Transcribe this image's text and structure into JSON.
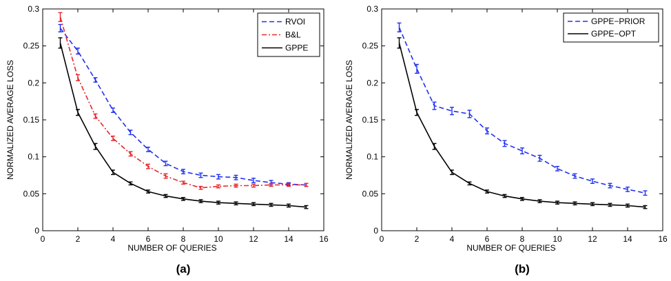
{
  "chart_data": [
    {
      "type": "line",
      "caption": "(a)",
      "xlabel": "NUMBER OF QUERIES",
      "ylabel": "NORMALIZED AVERAGE LOSS",
      "xlim": [
        0,
        16
      ],
      "ylim": [
        0,
        0.3
      ],
      "xticks": [
        0,
        2,
        4,
        6,
        8,
        10,
        12,
        14,
        16
      ],
      "yticks": [
        0,
        0.05,
        0.1,
        0.15,
        0.2,
        0.25,
        0.3
      ],
      "xtick_labels": [
        "0",
        "2",
        "4",
        "6",
        "8",
        "10",
        "12",
        "14",
        "16"
      ],
      "ytick_labels": [
        "0",
        "0.05",
        "0.1",
        "0.15",
        "0.2",
        "0.25",
        "0.3"
      ],
      "grid": false,
      "legend_position": "top-right",
      "x": [
        1,
        2,
        3,
        4,
        5,
        6,
        7,
        8,
        9,
        10,
        11,
        12,
        13,
        14,
        15
      ],
      "series": [
        {
          "name": "RVOI",
          "color": "#1f2ff0",
          "style": "dashed",
          "values": [
            0.274,
            0.243,
            0.204,
            0.163,
            0.133,
            0.11,
            0.091,
            0.08,
            0.075,
            0.073,
            0.072,
            0.068,
            0.065,
            0.063,
            0.062
          ],
          "errors": [
            0.005,
            0.004,
            0.003,
            0.003,
            0.003,
            0.003,
            0.003,
            0.003,
            0.003,
            0.003,
            0.003,
            0.003,
            0.003,
            0.002,
            0.002
          ]
        },
        {
          "name": "B&L",
          "color": "#e8252a",
          "style": "dashdot",
          "values": [
            0.289,
            0.207,
            0.155,
            0.125,
            0.104,
            0.087,
            0.074,
            0.065,
            0.058,
            0.06,
            0.061,
            0.061,
            0.062,
            0.062,
            0.062
          ],
          "errors": [
            0.006,
            0.004,
            0.003,
            0.003,
            0.003,
            0.003,
            0.003,
            0.002,
            0.002,
            0.002,
            0.002,
            0.002,
            0.002,
            0.002,
            0.002
          ]
        },
        {
          "name": "GPPE",
          "color": "#000000",
          "style": "solid",
          "values": [
            0.254,
            0.16,
            0.114,
            0.079,
            0.064,
            0.053,
            0.047,
            0.043,
            0.04,
            0.038,
            0.037,
            0.036,
            0.035,
            0.034,
            0.032
          ],
          "errors": [
            0.007,
            0.004,
            0.004,
            0.003,
            0.002,
            0.002,
            0.002,
            0.002,
            0.002,
            0.002,
            0.002,
            0.002,
            0.002,
            0.002,
            0.002
          ]
        }
      ]
    },
    {
      "type": "line",
      "caption": "(b)",
      "xlabel": "NUMBER OF QUERIES",
      "ylabel": "NORMALIZED AVERAGE LOSS",
      "xlim": [
        0,
        16
      ],
      "ylim": [
        0,
        0.3
      ],
      "xticks": [
        0,
        2,
        4,
        6,
        8,
        10,
        12,
        14,
        16
      ],
      "yticks": [
        0,
        0.05,
        0.1,
        0.15,
        0.2,
        0.25,
        0.3
      ],
      "xtick_labels": [
        "0",
        "2",
        "4",
        "6",
        "8",
        "10",
        "12",
        "14",
        "16"
      ],
      "ytick_labels": [
        "0",
        "0.05",
        "0.1",
        "0.15",
        "0.2",
        "0.25",
        "0.3"
      ],
      "grid": false,
      "legend_position": "top-right",
      "x": [
        1,
        2,
        3,
        4,
        5,
        6,
        7,
        8,
        9,
        10,
        11,
        12,
        13,
        14,
        15
      ],
      "series": [
        {
          "name": "GPPE−PRIOR",
          "color": "#1f2ff0",
          "style": "dashed",
          "values": [
            0.275,
            0.219,
            0.169,
            0.162,
            0.158,
            0.135,
            0.118,
            0.108,
            0.098,
            0.084,
            0.074,
            0.067,
            0.061,
            0.056,
            0.051
          ],
          "errors": [
            0.006,
            0.006,
            0.005,
            0.005,
            0.005,
            0.004,
            0.004,
            0.004,
            0.004,
            0.003,
            0.003,
            0.003,
            0.003,
            0.003,
            0.003
          ]
        },
        {
          "name": "GPPE−OPT",
          "color": "#000000",
          "style": "solid",
          "values": [
            0.254,
            0.16,
            0.114,
            0.079,
            0.064,
            0.053,
            0.047,
            0.043,
            0.04,
            0.038,
            0.037,
            0.036,
            0.035,
            0.034,
            0.032
          ],
          "errors": [
            0.007,
            0.004,
            0.004,
            0.003,
            0.002,
            0.002,
            0.002,
            0.002,
            0.002,
            0.002,
            0.002,
            0.002,
            0.002,
            0.002,
            0.002
          ]
        }
      ]
    }
  ]
}
